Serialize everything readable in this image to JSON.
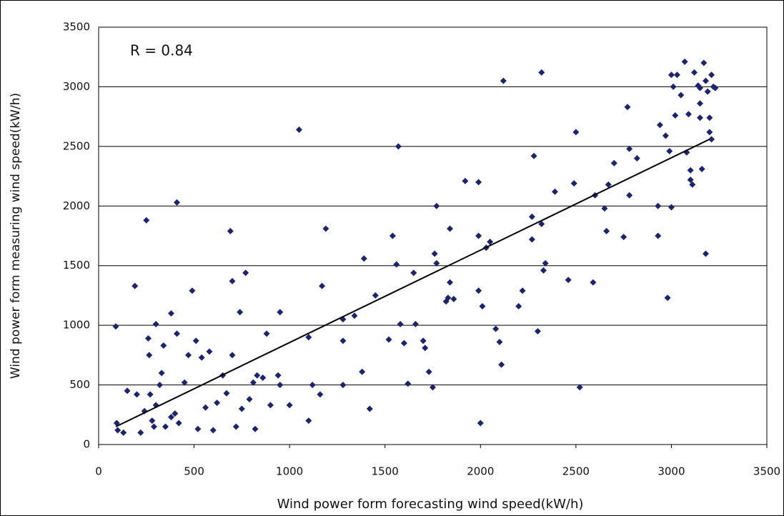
{
  "chart_data": {
    "type": "scatter",
    "annotation": "R = 0.84",
    "xlabel": "Wind power form forecasting wind speed(kW/h)",
    "ylabel": "Wind power form measuring wind speed(kW/h)",
    "xlim": [
      0,
      3500
    ],
    "xticks": [
      0,
      500,
      1000,
      1500,
      2000,
      2500,
      3000,
      3500
    ],
    "ylim": [
      0,
      3500
    ],
    "yticks": [
      0,
      500,
      1000,
      1500,
      2000,
      2500,
      3000,
      3500
    ],
    "grid": true,
    "color": "#1c2470",
    "x": [
      90,
      95,
      100,
      130,
      150,
      190,
      200,
      220,
      240,
      250,
      260,
      265,
      270,
      280,
      290,
      300,
      300,
      320,
      330,
      340,
      350,
      380,
      380,
      400,
      410,
      410,
      420,
      450,
      470,
      490,
      510,
      520,
      540,
      560,
      580,
      600,
      620,
      650,
      670,
      690,
      700,
      700,
      720,
      740,
      750,
      770,
      790,
      810,
      820,
      830,
      860,
      880,
      900,
      940,
      950,
      950,
      1000,
      1050,
      1100,
      1100,
      1120,
      1160,
      1170,
      1190,
      1280,
      1280,
      1280,
      1340,
      1380,
      1390,
      1420,
      1450,
      1520,
      1540,
      1560,
      1570,
      1580,
      1600,
      1620,
      1650,
      1660,
      1700,
      1710,
      1730,
      1750,
      1760,
      1770,
      1770,
      1820,
      1830,
      1840,
      1840,
      1860,
      1920,
      1990,
      1990,
      1990,
      2000,
      2010,
      2030,
      2050,
      2080,
      2100,
      2110,
      2120,
      2200,
      2220,
      2270,
      2270,
      2280,
      2300,
      2320,
      2320,
      2330,
      2340,
      2390,
      2460,
      2490,
      2500,
      2520,
      2590,
      2600,
      2650,
      2660,
      2670,
      2700,
      2750,
      2770,
      2780,
      2780,
      2820,
      2930,
      2930,
      2940,
      2970,
      2980,
      2990,
      3000,
      3000,
      3010,
      3020,
      3030,
      3050,
      3070,
      3080,
      3090,
      3100,
      3100,
      3110,
      3120,
      3140,
      3150,
      3150,
      3150,
      3160,
      3170,
      3180,
      3180,
      3190,
      3200,
      3200,
      3210,
      3210,
      3220,
      3230
    ],
    "values": [
      990,
      180,
      120,
      100,
      450,
      1330,
      420,
      100,
      280,
      1880,
      890,
      750,
      420,
      200,
      150,
      1010,
      330,
      500,
      600,
      830,
      150,
      1100,
      230,
      260,
      930,
      2030,
      180,
      520,
      750,
      1290,
      870,
      130,
      730,
      310,
      780,
      120,
      350,
      580,
      430,
      1790,
      750,
      1370,
      150,
      1110,
      300,
      1440,
      380,
      520,
      130,
      580,
      560,
      930,
      330,
      580,
      1110,
      500,
      330,
      2640,
      900,
      200,
      500,
      420,
      1330,
      1810,
      1050,
      500,
      870,
      1080,
      610,
      1560,
      300,
      1250,
      880,
      1750,
      1510,
      2500,
      1010,
      850,
      510,
      1440,
      1010,
      870,
      810,
      610,
      480,
      1600,
      1520,
      2000,
      1200,
      1230,
      1360,
      1810,
      1220,
      2210,
      2200,
      1750,
      1290,
      180,
      1160,
      1650,
      1700,
      970,
      860,
      670,
      3050,
      1160,
      1290,
      1910,
      1720,
      2420,
      950,
      3120,
      1850,
      1460,
      1520,
      2120,
      1380,
      2190,
      2620,
      480,
      1360,
      2090,
      1980,
      1790,
      2180,
      2360,
      1740,
      2830,
      2090,
      2480,
      2400,
      2000,
      1750,
      2680,
      2590,
      1230,
      2460,
      1990,
      3100,
      3000,
      2760,
      3100,
      2930,
      3210,
      2450,
      2770,
      2300,
      2220,
      2180,
      3120,
      3010,
      2990,
      2860,
      2740,
      2310,
      3200,
      1600,
      3050,
      2960,
      2620,
      2740,
      3100,
      2560,
      3000,
      2990
    ],
    "trendline": {
      "x": [
        90,
        3200
      ],
      "y": [
        150,
        2560
      ]
    }
  }
}
